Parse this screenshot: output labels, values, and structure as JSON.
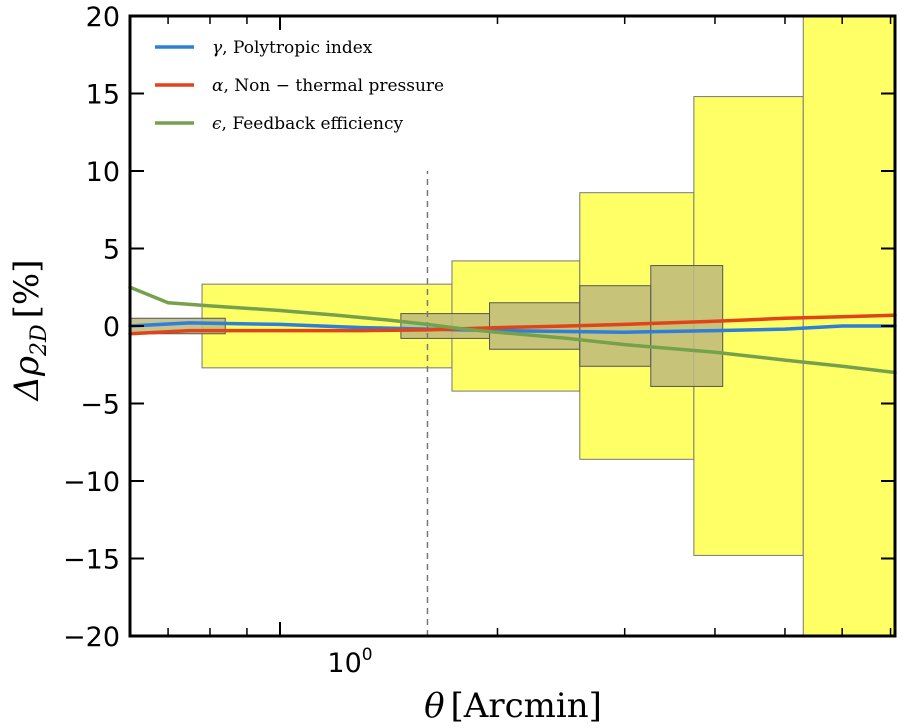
{
  "chart_data": {
    "type": "line",
    "xscale": "log",
    "xlim": [
      0.62,
      7.1
    ],
    "ylim": [
      -20,
      20
    ],
    "xlabel": "θ [Arcmin]",
    "ylabel": "Δρ₂D [%]",
    "ylabel_main": "Δρ",
    "ylabel_sub": "2D",
    "ylabel_bracket": "[%]",
    "xlabel_main": "θ",
    "xlabel_bracket": "[Arcmin]",
    "yticks": [
      -20,
      -15,
      -10,
      -5,
      0,
      5,
      10,
      15,
      20
    ],
    "ytick_labels": [
      "−20",
      "−15",
      "−10",
      "−5",
      "0",
      "5",
      "10",
      "15",
      "20"
    ],
    "xtick_major": {
      "value": 1,
      "base": "10",
      "exp": "0"
    },
    "xtick_minor": [
      0.7,
      0.8,
      0.9,
      2,
      3,
      4,
      5,
      6,
      7
    ],
    "reference_line": {
      "x": 1.6,
      "y_from": -20,
      "y_to": 10,
      "style": "dashed"
    },
    "series": [
      {
        "name": "γ , Polytropic index",
        "symbol": "γ",
        "text": ", Polytropic index",
        "color": "#2E7FD8",
        "x": [
          0.62,
          0.75,
          1.0,
          1.3,
          1.6,
          2.0,
          3.0,
          4.0,
          5.0,
          6.0,
          7.1
        ],
        "y": [
          0.0,
          0.2,
          0.1,
          -0.1,
          -0.2,
          -0.3,
          -0.4,
          -0.3,
          -0.2,
          0.0,
          0.0
        ]
      },
      {
        "name": "α , Non − thermal pressure",
        "symbol": "α",
        "text": ", Non − thermal pressure",
        "color": "#E0441A",
        "x": [
          0.62,
          0.75,
          1.0,
          1.3,
          1.6,
          2.0,
          2.5,
          3.0,
          4.0,
          5.0,
          6.0,
          7.1
        ],
        "y": [
          -0.5,
          -0.3,
          -0.3,
          -0.3,
          -0.25,
          -0.1,
          0.0,
          0.1,
          0.3,
          0.5,
          0.6,
          0.7
        ]
      },
      {
        "name": "ϵ , Feedback efficiency",
        "symbol": "ϵ",
        "text": ", Feedback efficiency",
        "color": "#76A14C",
        "x": [
          0.62,
          0.7,
          0.8,
          1.0,
          1.2,
          1.4,
          1.6,
          1.8,
          2.0,
          2.5,
          3.0,
          4.0,
          5.0,
          6.0,
          7.1
        ],
        "y": [
          2.5,
          1.5,
          1.3,
          1.0,
          0.7,
          0.4,
          0.1,
          -0.2,
          -0.4,
          -0.8,
          -1.2,
          -1.7,
          -2.2,
          -2.6,
          -3.0
        ]
      }
    ],
    "error_boxes_yellow": [
      {
        "x0": 0.78,
        "x1": 1.73,
        "half_height": 2.7
      },
      {
        "x0": 1.73,
        "x1": 2.6,
        "half_height": 4.2
      },
      {
        "x0": 2.6,
        "x1": 3.74,
        "half_height": 8.6
      },
      {
        "x0": 3.74,
        "x1": 5.3,
        "half_height": 14.8
      },
      {
        "x0": 5.3,
        "x1": 7.1,
        "half_height": 20.0
      }
    ],
    "error_boxes_gray": [
      {
        "x0": 0.62,
        "x1": 0.84,
        "half_height": 0.5
      },
      {
        "x0": 1.47,
        "x1": 1.95,
        "half_height": 0.8
      },
      {
        "x0": 1.95,
        "x1": 2.6,
        "half_height": 1.5
      },
      {
        "x0": 2.6,
        "x1": 3.26,
        "half_height": 2.6
      },
      {
        "x0": 3.26,
        "x1": 4.1,
        "half_height": 3.9
      }
    ],
    "colors": {
      "yellow": "#FFFF66",
      "gray": "#BDBA7E",
      "edge": "#777777"
    },
    "legend_placement": "top-left"
  }
}
